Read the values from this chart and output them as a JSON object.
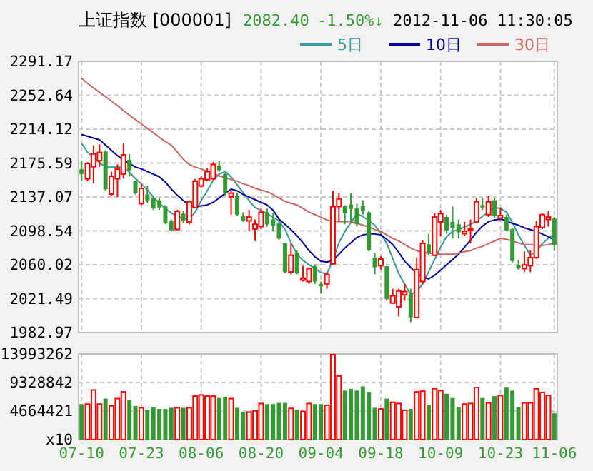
{
  "chart_data": [
    {
      "type": "candlestick",
      "title": "上证指数 [000001]",
      "annotations": [
        "2082.40",
        "-1.50%↓",
        "2012-11-06 11:30:05"
      ],
      "categories": [
        null,
        null,
        null,
        null,
        null,
        null,
        null,
        null,
        null,
        null,
        null,
        null,
        null,
        null,
        null,
        null,
        null,
        null,
        null,
        null,
        null,
        null,
        null,
        null,
        null,
        null,
        null,
        null,
        null,
        null,
        null,
        null,
        null,
        null,
        null,
        null,
        null,
        null,
        null,
        null,
        null,
        null,
        null,
        null,
        null,
        null,
        null,
        null,
        null,
        null,
        null,
        null,
        null,
        null,
        null,
        null,
        null,
        null,
        null,
        null,
        null,
        null,
        null,
        null,
        null,
        null,
        null,
        null,
        null,
        null,
        null,
        null,
        null,
        null,
        null,
        null,
        null,
        null,
        null,
        null
      ],
      "ohlc": [
        [
          2168.6,
          2178.3,
          2155.0,
          2163.1
        ],
        [
          2157.7,
          2176.7,
          2155.0,
          2175.1
        ],
        [
          2171.3,
          2195.7,
          2152.3,
          2185.9
        ],
        [
          2178.3,
          2196.8,
          2171.3,
          2187.6
        ],
        [
          2188.7,
          2190.3,
          2144.1,
          2145.8
        ],
        [
          2140.3,
          2165.8,
          2138.7,
          2160.4
        ],
        [
          2157.7,
          2174.0,
          2137.1,
          2168.6
        ],
        [
          2163.1,
          2198.4,
          2157.7,
          2184.8
        ],
        [
          2179.4,
          2185.9,
          2160.4,
          2167.5
        ],
        [
          2155.0,
          2155.5,
          2139.7,
          2141.4
        ],
        [
          2129.5,
          2152.3,
          2127.8,
          2146.8
        ],
        [
          2139.8,
          2149.6,
          2130.6,
          2133.3
        ],
        [
          2136.0,
          2138.7,
          2122.4,
          2124.0
        ],
        [
          2133.3,
          2136.0,
          2122.4,
          2125.1
        ],
        [
          2126.2,
          2127.8,
          2106.1,
          2107.7
        ],
        [
          2109.9,
          2111.5,
          2098.0,
          2099.1
        ],
        [
          2100.2,
          2122.4,
          2099.1,
          2120.8
        ],
        [
          2118.1,
          2120.8,
          2107.7,
          2109.9
        ],
        [
          2108.8,
          2133.3,
          2106.1,
          2131.6
        ],
        [
          2125.1,
          2157.7,
          2124.0,
          2155.0
        ],
        [
          2149.6,
          2160.4,
          2147.9,
          2157.7
        ],
        [
          2156.6,
          2169.7,
          2155.0,
          2165.8
        ],
        [
          2157.7,
          2176.7,
          2156.6,
          2174.0
        ],
        [
          2172.9,
          2178.3,
          2165.8,
          2167.5
        ],
        [
          2163.1,
          2164.2,
          2138.7,
          2141.4
        ],
        [
          2137.1,
          2144.1,
          2117.0,
          2141.4
        ],
        [
          2138.7,
          2141.4,
          2115.4,
          2117.0
        ],
        [
          2115.4,
          2119.7,
          2108.8,
          2109.9
        ],
        [
          2109.9,
          2122.4,
          2098.0,
          2114.3
        ],
        [
          2100.7,
          2111.5,
          2087.0,
          2106.1
        ],
        [
          2103.4,
          2124.0,
          2100.7,
          2119.7
        ],
        [
          2119.7,
          2124.0,
          2103.4,
          2106.1
        ],
        [
          2111.5,
          2118.6,
          2098.0,
          2104.5
        ],
        [
          2107.2,
          2109.9,
          2088.2,
          2089.8
        ],
        [
          2084.4,
          2084.4,
          2050.2,
          2051.8
        ],
        [
          2051.8,
          2084.4,
          2049.0,
          2070.8
        ],
        [
          2073.5,
          2076.2,
          2049.0,
          2050.2
        ],
        [
          2042.6,
          2058.9,
          2041.0,
          2044.8
        ],
        [
          2041.0,
          2057.2,
          2038.3,
          2055.6
        ],
        [
          2058.3,
          2060.0,
          2038.3,
          2041.0
        ],
        [
          2038.3,
          2041.0,
          2027.4,
          2035.5
        ],
        [
          2038.3,
          2051.8,
          2032.8,
          2049.1
        ],
        [
          2061.0,
          2144.1,
          2060.0,
          2126.2
        ],
        [
          2126.2,
          2141.4,
          2108.8,
          2134.9
        ],
        [
          2126.7,
          2127.8,
          2106.1,
          2118.6
        ],
        [
          2128.4,
          2141.4,
          2108.8,
          2123.5
        ],
        [
          2124.0,
          2129.5,
          2103.4,
          2106.1
        ],
        [
          2126.7,
          2133.3,
          2117.0,
          2121.3
        ],
        [
          2119.7,
          2120.8,
          2075.2,
          2076.3
        ],
        [
          2068.1,
          2073.5,
          2049.1,
          2057.2
        ],
        [
          2058.9,
          2069.7,
          2054.5,
          2066.5
        ],
        [
          2058.3,
          2058.3,
          2019.2,
          2020.9
        ],
        [
          2016.5,
          2032.8,
          2015.4,
          2024.7
        ],
        [
          2012.2,
          2032.8,
          2001.3,
          2030.1
        ],
        [
          2025.8,
          2038.3,
          2019.2,
          2029.5
        ],
        [
          2026.3,
          2032.8,
          1994.8,
          2000.2
        ],
        [
          2000.2,
          2068.1,
          1999.1,
          2054.5
        ],
        [
          2041.0,
          2088.2,
          2038.3,
          2084.4
        ],
        [
          2083.3,
          2095.2,
          2070.8,
          2073.5
        ],
        [
          2070.8,
          2118.6,
          2069.7,
          2114.3
        ],
        [
          2108.8,
          2122.4,
          2092.5,
          2118.1
        ],
        [
          2114.3,
          2117.0,
          2095.2,
          2099.1
        ],
        [
          2108.8,
          2126.2,
          2089.8,
          2101.8
        ],
        [
          2106.1,
          2111.5,
          2089.8,
          2096.9
        ],
        [
          2095.3,
          2108.8,
          2092.5,
          2098.0
        ],
        [
          2099.1,
          2111.5,
          2084.4,
          2100.7
        ],
        [
          2108.8,
          2136.0,
          2107.7,
          2131.6
        ],
        [
          2127.8,
          2136.0,
          2122.4,
          2125.1
        ],
        [
          2117.0,
          2138.7,
          2114.3,
          2131.6
        ],
        [
          2133.3,
          2136.0,
          2113.2,
          2115.4
        ],
        [
          2113.2,
          2125.1,
          2110.4,
          2115.9
        ],
        [
          2114.3,
          2117.0,
          2098.0,
          2099.1
        ],
        [
          2100.7,
          2102.3,
          2062.7,
          2064.3
        ],
        [
          2059.9,
          2065.4,
          2054.5,
          2055.6
        ],
        [
          2055.6,
          2075.2,
          2051.8,
          2059.9
        ],
        [
          2058.9,
          2076.2,
          2051.8,
          2068.1
        ],
        [
          2068.1,
          2109.9,
          2066.5,
          2103.4
        ],
        [
          2102.3,
          2118.6,
          2100.7,
          2117.0
        ],
        [
          2111.5,
          2120.8,
          2103.4,
          2114.3
        ],
        [
          2112.6,
          2114.3,
          2076.2,
          2082.4
        ]
      ],
      "series": [
        {
          "name": "5日",
          "type": "line",
          "color": "#339999",
          "values": [
            2198,
            2188,
            2182,
            2176,
            2171,
            2171,
            2171,
            2171,
            2165,
            2158,
            2152,
            2145,
            2137,
            2130,
            2124,
            2119,
            2115,
            2113,
            2112,
            2120,
            2133,
            2144,
            2156,
            2163,
            2166,
            2160,
            2151,
            2142,
            2133,
            2125,
            2122,
            2118,
            2114,
            2110,
            2100,
            2085,
            2072,
            2065,
            2060,
            2056,
            2051,
            2050,
            2065,
            2085,
            2098,
            2108,
            2118,
            2115,
            2110,
            2105,
            2096,
            2084,
            2067,
            2050,
            2038,
            2026,
            2030,
            2038,
            2052,
            2066,
            2080,
            2092,
            2098,
            2100,
            2103,
            2106,
            2110,
            2115,
            2120,
            2125,
            2124,
            2120,
            2108,
            2094,
            2082,
            2071,
            2075,
            2084,
            2090,
            2095
          ]
        },
        {
          "name": "10日",
          "type": "line",
          "color": "#000099",
          "values": [
            2208,
            2206,
            2204,
            2202,
            2196,
            2190,
            2184,
            2179,
            2175,
            2171,
            2169,
            2166,
            2163,
            2160,
            2154,
            2146,
            2139,
            2133,
            2128,
            2126,
            2127,
            2128,
            2131,
            2136,
            2141,
            2146,
            2144,
            2140,
            2137,
            2134,
            2131,
            2128,
            2122,
            2112,
            2106,
            2100,
            2093,
            2085,
            2076,
            2069,
            2064,
            2063,
            2065,
            2072,
            2079,
            2085,
            2091,
            2094,
            2095,
            2095,
            2094,
            2089,
            2083,
            2074,
            2064,
            2057,
            2050,
            2046,
            2044,
            2048,
            2054,
            2060,
            2066,
            2072,
            2080,
            2088,
            2097,
            2104,
            2109,
            2111,
            2112,
            2110,
            2107,
            2105,
            2102,
            2100,
            2098,
            2095,
            2092,
            2088
          ]
        },
        {
          "name": "30日",
          "type": "line",
          "color": "#cc6666",
          "values": [
            2272,
            2266,
            2261,
            2256,
            2251,
            2246,
            2241,
            2235,
            2230,
            2225,
            2220,
            2215,
            2210,
            2205,
            2200,
            2196,
            2188,
            2180,
            2174,
            2171,
            2169,
            2166,
            2164,
            2161,
            2159,
            2157,
            2155,
            2152,
            2150,
            2147,
            2145,
            2143,
            2140,
            2136,
            2132,
            2130,
            2128,
            2124,
            2120,
            2117,
            2114,
            2111,
            2109,
            2109,
            2109,
            2109,
            2107,
            2105,
            2103,
            2100,
            2098,
            2094,
            2090,
            2087,
            2083,
            2079,
            2076,
            2074,
            2073,
            2073,
            2072,
            2072,
            2072,
            2073,
            2075,
            2076,
            2079,
            2081,
            2084,
            2087,
            2090,
            2089,
            2087,
            2085,
            2083,
            2083,
            2082,
            2082,
            2083,
            2085
          ]
        }
      ],
      "ylim": [
        1982.97,
        2291.17
      ],
      "yticks": [
        1982.97,
        2021.49,
        2060.02,
        2098.54,
        2137.07,
        2175.59,
        2214.12,
        2252.64,
        2291.17
      ],
      "grid": true,
      "legend": "top right",
      "tick_labels": "y"
    },
    {
      "type": "bar",
      "categories": [
        "07-10",
        null,
        null,
        null,
        null,
        null,
        null,
        null,
        null,
        null,
        "07-23",
        null,
        null,
        null,
        null,
        null,
        null,
        null,
        null,
        null,
        "08-06",
        null,
        null,
        null,
        null,
        null,
        null,
        null,
        null,
        null,
        "08-20",
        null,
        null,
        null,
        null,
        null,
        null,
        null,
        null,
        null,
        "09-04",
        null,
        null,
        null,
        null,
        null,
        null,
        null,
        null,
        null,
        "09-18",
        null,
        null,
        null,
        null,
        null,
        null,
        null,
        null,
        null,
        "10-09",
        null,
        null,
        null,
        null,
        null,
        null,
        null,
        null,
        null,
        "10-23",
        null,
        null,
        null,
        null,
        null,
        null,
        null,
        null,
        "11-06"
      ],
      "values": [
        5800000,
        5800000,
        8100000,
        5800000,
        6700000,
        5500000,
        6700000,
        7800000,
        6500000,
        5500000,
        5200000,
        4900000,
        5300000,
        5000000,
        5000000,
        5200000,
        5200000,
        5200000,
        5200000,
        7100000,
        7300000,
        7100000,
        7100000,
        6800000,
        7000000,
        6700000,
        5200000,
        4500000,
        4500000,
        4700000,
        5900000,
        5800000,
        5800000,
        6000000,
        6000000,
        5100000,
        4900000,
        4600000,
        5900000,
        5800000,
        5800000,
        5600000,
        13900000,
        10400000,
        8000000,
        8300000,
        8000000,
        8700000,
        7800000,
        5200000,
        5000000,
        6700000,
        6100000,
        5900000,
        4800000,
        5000000,
        7800000,
        7900000,
        5600000,
        8300000,
        8000000,
        7500000,
        6800000,
        5300000,
        5800000,
        5900000,
        8500000,
        6800000,
        6000000,
        7100000,
        7200000,
        8600000,
        8000000,
        5300000,
        6000000,
        6000000,
        8300000,
        7700000,
        7200000,
        4300000
      ],
      "ylim": [
        0,
        13993262
      ],
      "yticks": [
        {
          "value": 0,
          "label": "x10"
        },
        4664421,
        9328842,
        13993262
      ],
      "grid": true
    }
  ]
}
